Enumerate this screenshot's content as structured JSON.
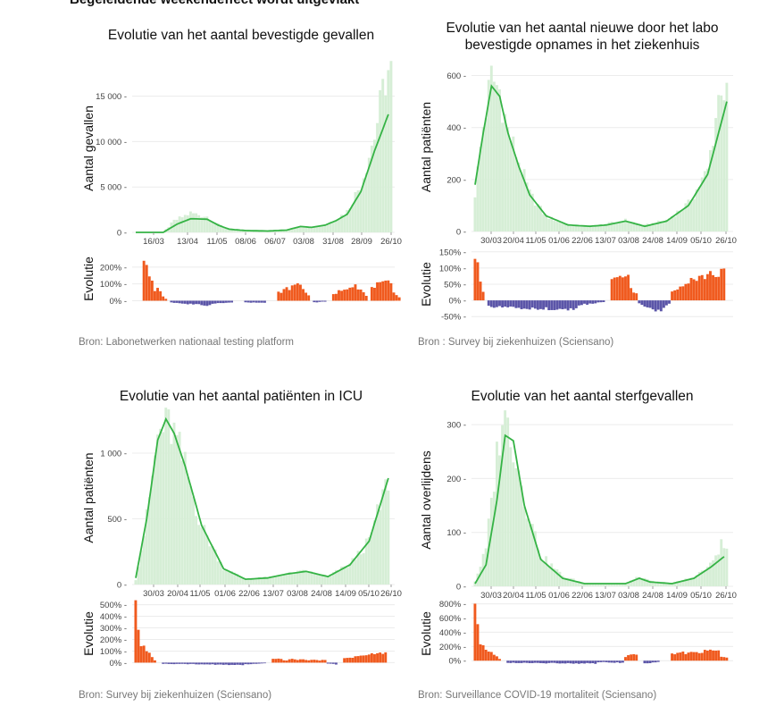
{
  "header": {
    "text": "Begeleidende weekendeffect wordt uitgevlakt"
  },
  "colors": {
    "bars": "#d6eed6",
    "line": "#35b345",
    "positive": "#f05a1e",
    "negative": "#5b55a8",
    "grid": "#ececec"
  },
  "chart_data": [
    {
      "type": "bar",
      "title": "Evolutie van het aantal bevestigde gevallen",
      "ylabel": "Aantal gevallen",
      "ylim": [
        0,
        18500
      ],
      "yticks": [
        0,
        5000,
        10000,
        15000
      ],
      "ytick_labels": [
        "0",
        "5 000",
        "10 000",
        "15 000"
      ],
      "xtick_labels": [
        "16/03",
        "13/04",
        "11/05",
        "08/06",
        "06/07",
        "03/08",
        "31/08",
        "28/09",
        "26/10"
      ],
      "smoothed_line": [
        [
          0,
          0
        ],
        [
          10,
          0
        ],
        [
          15,
          900
        ],
        [
          20,
          1500
        ],
        [
          26,
          1450
        ],
        [
          30,
          800
        ],
        [
          34,
          350
        ],
        [
          40,
          200
        ],
        [
          48,
          150
        ],
        [
          55,
          250
        ],
        [
          60,
          650
        ],
        [
          64,
          550
        ],
        [
          69,
          800
        ],
        [
          73,
          1300
        ],
        [
          77,
          2000
        ],
        [
          82,
          4500
        ],
        [
          87,
          9000
        ],
        [
          92,
          13000
        ]
      ],
      "bar_peaks": [
        [
          0,
          0
        ],
        [
          10,
          0
        ],
        [
          14,
          1300
        ],
        [
          20,
          2200
        ],
        [
          26,
          1800
        ],
        [
          30,
          900
        ],
        [
          34,
          350
        ],
        [
          40,
          200
        ],
        [
          48,
          150
        ],
        [
          55,
          300
        ],
        [
          60,
          700
        ],
        [
          64,
          600
        ],
        [
          69,
          900
        ],
        [
          73,
          1500
        ],
        [
          77,
          2400
        ],
        [
          82,
          5500
        ],
        [
          87,
          11000
        ],
        [
          91,
          17500
        ],
        [
          93,
          19000
        ],
        [
          96,
          6000
        ],
        [
          97,
          0
        ]
      ],
      "evolution": {
        "ylabel": "Evolutie",
        "ylim": [
          -40,
          300
        ],
        "yticks": [
          0,
          100,
          200
        ],
        "ytick_labels": [
          "0%",
          "100%",
          "200%"
        ],
        "segments": [
          [
            3,
            8,
            240,
            70,
            "pos"
          ],
          [
            8,
            12,
            70,
            10,
            "pos"
          ],
          [
            13,
            28,
            -10,
            -30,
            "neg"
          ],
          [
            28,
            36,
            -20,
            -10,
            "neg"
          ],
          [
            40,
            48,
            -10,
            -15,
            "neg"
          ],
          [
            52,
            60,
            50,
            100,
            "pos"
          ],
          [
            60,
            64,
            100,
            30,
            "pos"
          ],
          [
            65,
            70,
            -10,
            -5,
            "neg"
          ],
          [
            72,
            80,
            40,
            100,
            "pos"
          ],
          [
            80,
            85,
            100,
            30,
            "pos"
          ],
          [
            86,
            94,
            90,
            110,
            "pos"
          ],
          [
            94,
            97,
            60,
            20,
            "pos"
          ]
        ]
      },
      "source": "Bron: Labonetwerken nationaal testing platform"
    },
    {
      "type": "bar",
      "title": "Evolutie van het aantal nieuwe door het labo bevestigde opnames in het ziekenhuis",
      "ylabel": "Aantal patiënten",
      "ylim": [
        0,
        650
      ],
      "yticks": [
        0,
        200,
        400,
        600
      ],
      "ytick_labels": [
        "0",
        "200",
        "400",
        "600"
      ],
      "xtick_labels": [
        "30/03",
        "20/04",
        "11/05",
        "01/06",
        "22/06",
        "13/07",
        "03/08",
        "24/08",
        "14/09",
        "05/10",
        "26/10"
      ],
      "smoothed_line": [
        [
          0,
          180
        ],
        [
          3,
          380
        ],
        [
          6,
          560
        ],
        [
          9,
          520
        ],
        [
          12,
          380
        ],
        [
          16,
          250
        ],
        [
          20,
          140
        ],
        [
          26,
          60
        ],
        [
          34,
          25
        ],
        [
          42,
          20
        ],
        [
          48,
          25
        ],
        [
          55,
          40
        ],
        [
          62,
          20
        ],
        [
          70,
          40
        ],
        [
          78,
          100
        ],
        [
          85,
          220
        ],
        [
          92,
          500
        ]
      ],
      "bar_peaks": [
        [
          0,
          150
        ],
        [
          3,
          420
        ],
        [
          6,
          610
        ],
        [
          9,
          560
        ],
        [
          12,
          400
        ],
        [
          16,
          280
        ],
        [
          20,
          150
        ],
        [
          26,
          60
        ],
        [
          34,
          25
        ],
        [
          42,
          20
        ],
        [
          48,
          30
        ],
        [
          55,
          45
        ],
        [
          62,
          25
        ],
        [
          70,
          45
        ],
        [
          78,
          110
        ],
        [
          85,
          240
        ],
        [
          90,
          600
        ],
        [
          92,
          520
        ],
        [
          93,
          0
        ]
      ],
      "evolution": {
        "ylabel": "Evolutie",
        "ylim": [
          -55,
          155
        ],
        "yticks": [
          -50,
          0,
          50,
          100,
          150
        ],
        "ytick_labels": [
          "-50%",
          "0%",
          "50%",
          "100%",
          "150%"
        ],
        "segments": [
          [
            0,
            4,
            140,
            30,
            "pos"
          ],
          [
            5,
            38,
            -20,
            -30,
            "neg"
          ],
          [
            38,
            48,
            -15,
            -5,
            "neg"
          ],
          [
            50,
            57,
            60,
            80,
            "pos"
          ],
          [
            57,
            60,
            40,
            20,
            "pos"
          ],
          [
            60,
            68,
            -10,
            -35,
            "neg"
          ],
          [
            68,
            72,
            -30,
            -10,
            "neg"
          ],
          [
            72,
            80,
            30,
            70,
            "pos"
          ],
          [
            80,
            92,
            70,
            90,
            "pos"
          ]
        ]
      },
      "source": "Bron : Survey bij ziekenhuizen (Sciensano)"
    },
    {
      "type": "bar",
      "title": "Evolutie van het aantal patiënten in ICU",
      "ylabel": "Aantal patiënten",
      "ylim": [
        0,
        1320
      ],
      "yticks": [
        0,
        500,
        1000
      ],
      "ytick_labels": [
        "0",
        "500",
        "1 000"
      ],
      "xtick_labels": [
        "30/03",
        "20/04",
        "11/05",
        "01/06",
        "22/06",
        "13/07",
        "03/08",
        "24/08",
        "14/09",
        "05/10",
        "26/10"
      ],
      "smoothed_line": [
        [
          0,
          50
        ],
        [
          4,
          500
        ],
        [
          8,
          1100
        ],
        [
          11,
          1260
        ],
        [
          14,
          1150
        ],
        [
          18,
          900
        ],
        [
          24,
          450
        ],
        [
          32,
          120
        ],
        [
          40,
          40
        ],
        [
          48,
          50
        ],
        [
          55,
          80
        ],
        [
          62,
          100
        ],
        [
          70,
          60
        ],
        [
          78,
          150
        ],
        [
          85,
          330
        ],
        [
          92,
          810
        ]
      ],
      "bar_peaks": [
        [
          0,
          40
        ],
        [
          4,
          520
        ],
        [
          8,
          1150
        ],
        [
          11,
          1290
        ],
        [
          14,
          1180
        ],
        [
          18,
          920
        ],
        [
          24,
          460
        ],
        [
          32,
          130
        ],
        [
          40,
          45
        ],
        [
          48,
          55
        ],
        [
          55,
          85
        ],
        [
          62,
          105
        ],
        [
          70,
          65
        ],
        [
          78,
          160
        ],
        [
          85,
          340
        ],
        [
          92,
          830
        ],
        [
          93,
          0
        ]
      ],
      "evolution": {
        "ylabel": "Evolutie",
        "ylim": [
          -20,
          520
        ],
        "yticks": [
          0,
          100,
          200,
          300,
          400,
          500
        ],
        "ytick_labels": [
          "0%",
          "100%",
          "200%",
          "300%",
          "400%",
          "500%"
        ],
        "segments": [
          [
            0,
            3,
            480,
            150,
            "pos"
          ],
          [
            3,
            8,
            150,
            20,
            "pos"
          ],
          [
            10,
            40,
            -10,
            -20,
            "neg"
          ],
          [
            40,
            48,
            -15,
            -5,
            "neg"
          ],
          [
            50,
            56,
            40,
            20,
            "pos"
          ],
          [
            56,
            70,
            30,
            20,
            "pos"
          ],
          [
            70,
            74,
            -10,
            -15,
            "neg"
          ],
          [
            76,
            92,
            40,
            90,
            "pos"
          ]
        ]
      },
      "source": "Bron: Survey bij ziekenhuizen (Sciensano)"
    },
    {
      "type": "bar",
      "title": "Evolutie van het aantal sterfgevallen",
      "ylabel": "Aantal overlijdens",
      "ylim": [
        0,
        320
      ],
      "yticks": [
        0,
        100,
        200,
        300
      ],
      "ytick_labels": [
        "0",
        "100",
        "200",
        "300"
      ],
      "xtick_labels": [
        "30/03",
        "20/04",
        "11/05",
        "01/06",
        "22/06",
        "13/07",
        "03/08",
        "24/08",
        "14/09",
        "05/10",
        "26/10"
      ],
      "smoothed_line": [
        [
          0,
          5
        ],
        [
          4,
          40
        ],
        [
          8,
          160
        ],
        [
          11,
          280
        ],
        [
          14,
          270
        ],
        [
          18,
          150
        ],
        [
          24,
          50
        ],
        [
          32,
          15
        ],
        [
          40,
          5
        ],
        [
          48,
          5
        ],
        [
          55,
          5
        ],
        [
          60,
          15
        ],
        [
          64,
          8
        ],
        [
          72,
          5
        ],
        [
          80,
          15
        ],
        [
          86,
          35
        ],
        [
          91,
          55
        ]
      ],
      "bar_peaks": [
        [
          0,
          10
        ],
        [
          4,
          70
        ],
        [
          8,
          250
        ],
        [
          10,
          330
        ],
        [
          13,
          300
        ],
        [
          18,
          170
        ],
        [
          24,
          60
        ],
        [
          32,
          20
        ],
        [
          40,
          6
        ],
        [
          48,
          6
        ],
        [
          55,
          6
        ],
        [
          60,
          18
        ],
        [
          64,
          10
        ],
        [
          72,
          6
        ],
        [
          80,
          18
        ],
        [
          86,
          40
        ],
        [
          90,
          80
        ],
        [
          92,
          70
        ],
        [
          93,
          0
        ]
      ],
      "evolution": {
        "ylabel": "Evolutie",
        "ylim": [
          -60,
          820
        ],
        "yticks": [
          0,
          200,
          400,
          600,
          800
        ],
        "ytick_labels": [
          "0%",
          "200%",
          "400%",
          "600%",
          "800%"
        ],
        "segments": [
          [
            0,
            3,
            760,
            200,
            "pos"
          ],
          [
            3,
            10,
            200,
            30,
            "pos"
          ],
          [
            12,
            45,
            -30,
            -40,
            "neg"
          ],
          [
            45,
            55,
            -20,
            -30,
            "neg"
          ],
          [
            55,
            60,
            60,
            100,
            "pos"
          ],
          [
            62,
            68,
            -40,
            -20,
            "neg"
          ],
          [
            72,
            90,
            100,
            150,
            "pos"
          ],
          [
            90,
            93,
            60,
            40,
            "pos"
          ]
        ]
      },
      "source": "Bron: Surveillance COVID-19 mortaliteit (Sciensano)"
    }
  ]
}
